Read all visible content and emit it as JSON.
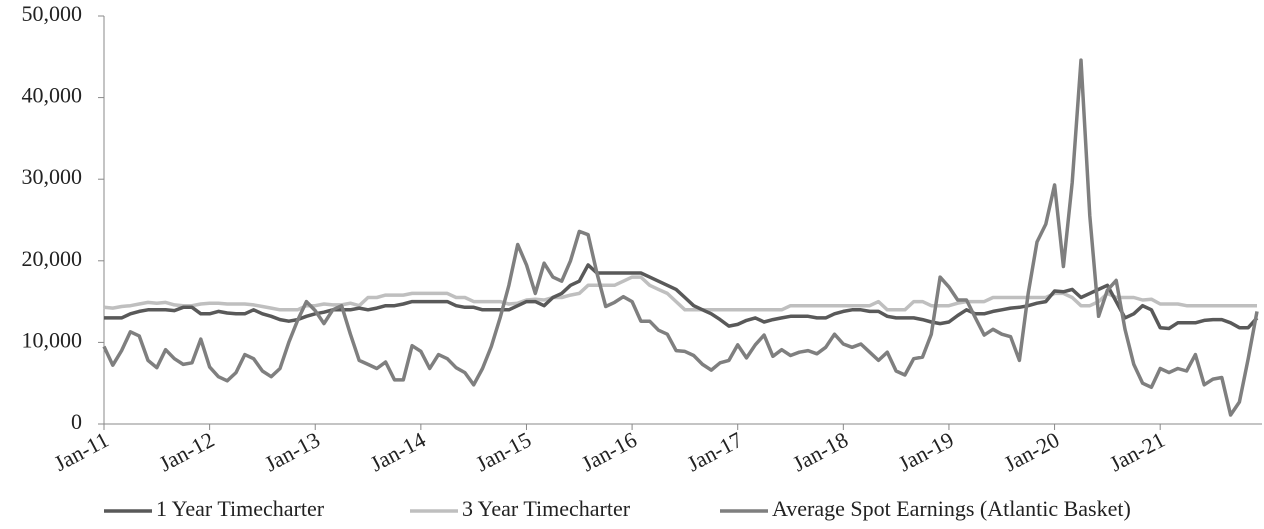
{
  "chart_data": {
    "type": "line",
    "categories": [
      "Jan-11",
      null,
      null,
      null,
      null,
      null,
      null,
      null,
      null,
      null,
      null,
      null,
      "Jan-12",
      null,
      null,
      null,
      null,
      null,
      null,
      null,
      null,
      null,
      null,
      null,
      "Jan-13",
      null,
      null,
      null,
      null,
      null,
      null,
      null,
      null,
      null,
      null,
      null,
      "Jan-14",
      null,
      null,
      null,
      null,
      null,
      null,
      null,
      null,
      null,
      null,
      null,
      "Jan-15",
      null,
      null,
      null,
      null,
      null,
      null,
      null,
      null,
      null,
      null,
      null,
      "Jan-16",
      null,
      null,
      null,
      null,
      null,
      null,
      null,
      null,
      null,
      null,
      null,
      "Jan-17",
      null,
      null,
      null,
      null,
      null,
      null,
      null,
      null,
      null,
      null,
      null,
      "Jan-18",
      null,
      null,
      null,
      null,
      null,
      null,
      null,
      null,
      null,
      null,
      null,
      "Jan-19",
      null,
      null,
      null,
      null,
      null,
      null,
      null,
      null,
      null,
      null,
      null,
      "Jan-20",
      null,
      null,
      null,
      null,
      null,
      null,
      null,
      null,
      null,
      null,
      null,
      "Jan-21",
      null,
      null,
      null,
      null,
      null,
      null,
      null,
      null,
      null,
      null,
      null
    ],
    "series": [
      {
        "name": "1 Year Timecharter",
        "color": "#595959",
        "values": [
          13000,
          13000,
          13000,
          13500,
          13800,
          14000,
          14000,
          14000,
          13900,
          14300,
          14300,
          13500,
          13500,
          13800,
          13600,
          13500,
          13500,
          14000,
          13500,
          13200,
          12800,
          12600,
          12800,
          13200,
          13500,
          13700,
          14000,
          14000,
          14000,
          14200,
          14000,
          14200,
          14500,
          14500,
          14700,
          15000,
          15000,
          15000,
          15000,
          15000,
          14500,
          14300,
          14300,
          14000,
          14000,
          14000,
          14000,
          14500,
          15000,
          15000,
          14500,
          15500,
          16000,
          17000,
          17500,
          19500,
          18500,
          18500,
          18500,
          18500,
          18500,
          18500,
          18000,
          17500,
          17000,
          16500,
          15500,
          14500,
          14000,
          13500,
          12800,
          12000,
          12200,
          12700,
          13000,
          12500,
          12800,
          13000,
          13200,
          13200,
          13200,
          13000,
          13000,
          13500,
          13800,
          14000,
          14000,
          13800,
          13800,
          13200,
          13000,
          13000,
          13000,
          12800,
          12500,
          12300,
          12500,
          13300,
          14000,
          13500,
          13500,
          13800,
          14000,
          14200,
          14300,
          14500,
          14800,
          15000,
          16300,
          16200,
          16500,
          15500,
          16000,
          16500,
          17000,
          15000,
          13000,
          13500,
          14500,
          14000,
          11800,
          11700,
          12400,
          12400,
          12400,
          12700,
          12800,
          12800,
          12400,
          11800,
          11800,
          13000
        ]
      },
      {
        "name": "3 Year Timecharter",
        "color": "#bfbfbf",
        "values": [
          14300,
          14200,
          14400,
          14500,
          14700,
          14900,
          14800,
          14900,
          14600,
          14500,
          14500,
          14700,
          14800,
          14800,
          14700,
          14700,
          14700,
          14600,
          14400,
          14200,
          14000,
          14000,
          14000,
          14500,
          14500,
          14700,
          14600,
          14600,
          14800,
          14500,
          15500,
          15500,
          15800,
          15800,
          15800,
          16000,
          16000,
          16000,
          16000,
          16000,
          15500,
          15500,
          15000,
          15000,
          15000,
          15000,
          14700,
          14800,
          15200,
          15300,
          15200,
          15500,
          15500,
          15800,
          16000,
          17000,
          17000,
          17000,
          17000,
          17500,
          18000,
          18000,
          17000,
          16500,
          16000,
          15000,
          14000,
          14000,
          14000,
          14000,
          14000,
          14000,
          14000,
          14000,
          14000,
          14000,
          14000,
          14000,
          14500,
          14500,
          14500,
          14500,
          14500,
          14500,
          14500,
          14500,
          14500,
          14500,
          15000,
          14000,
          14000,
          14000,
          15000,
          15000,
          14500,
          14500,
          14500,
          14800,
          15000,
          15000,
          15000,
          15500,
          15500,
          15500,
          15500,
          15500,
          15500,
          15500,
          16000,
          16000,
          15500,
          14500,
          14500,
          15000,
          16000,
          15500,
          15500,
          15500,
          15200,
          15300,
          14700,
          14700,
          14700,
          14500,
          14500,
          14500,
          14500,
          14500,
          14500,
          14500,
          14500,
          14500
        ]
      },
      {
        "name": "Average Spot Earnings (Atlantic Basket)",
        "color": "#7f7f7f",
        "values": [
          9500,
          7200,
          9000,
          11300,
          10800,
          7800,
          6900,
          9100,
          8000,
          7300,
          7500,
          10400,
          7000,
          5800,
          5300,
          6300,
          8500,
          8000,
          6500,
          5800,
          6800,
          10000,
          12700,
          15000,
          13900,
          12300,
          14000,
          14500,
          11000,
          7800,
          7300,
          6800,
          7600,
          5400,
          5400,
          9600,
          8900,
          6800,
          8500,
          8000,
          6900,
          6300,
          4800,
          6800,
          9500,
          13000,
          17000,
          22000,
          19500,
          16000,
          19700,
          18000,
          17500,
          20000,
          23600,
          23200,
          18500,
          14400,
          14900,
          15600,
          15000,
          12600,
          12600,
          11500,
          11000,
          9000,
          8900,
          8400,
          7300,
          6600,
          7500,
          7800,
          9700,
          8100,
          9700,
          10900,
          8300,
          9100,
          8400,
          8800,
          9000,
          8600,
          9400,
          11000,
          9800,
          9400,
          9800,
          8800,
          7800,
          8800,
          6500,
          6000,
          8000,
          8200,
          11000,
          18000,
          16800,
          15200,
          15200,
          13000,
          10900,
          11600,
          11000,
          10700,
          7800,
          16000,
          22300,
          24500,
          29300,
          19300,
          29600,
          44600,
          25500,
          13200,
          16400,
          17600,
          11600,
          7300,
          5000,
          4500,
          6800,
          6300,
          6800,
          6500,
          8500,
          4800,
          5500,
          5700,
          1100,
          2700,
          8000,
          13800
        ]
      }
    ],
    "ylim": [
      0,
      50000
    ],
    "yticks": [
      0,
      {
        "value": 10000,
        "label": "10,000"
      },
      {
        "value": 20000,
        "label": "20,000"
      },
      {
        "value": 30000,
        "label": "30,000"
      },
      {
        "value": 40000,
        "label": "40,000"
      },
      {
        "value": 50000,
        "label": "50,000"
      }
    ],
    "legend": "bottom"
  }
}
